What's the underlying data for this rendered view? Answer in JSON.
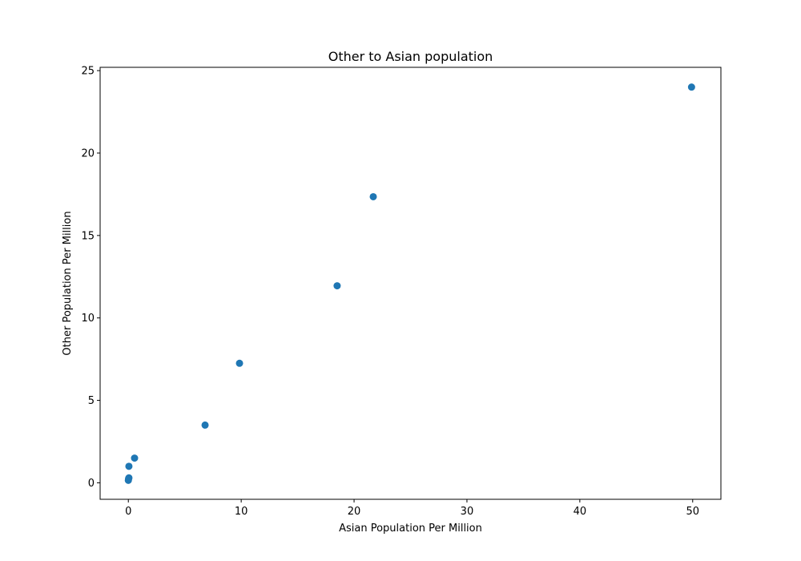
{
  "chart_data": {
    "type": "scatter",
    "title": "Other to Asian population",
    "xlabel": "Asian Population Per Million",
    "ylabel": "Other Population Per Million",
    "xlim": [
      -2.5,
      52.5
    ],
    "ylim": [
      -1.0,
      25.2
    ],
    "xticks": [
      0,
      10,
      20,
      30,
      40,
      50
    ],
    "yticks": [
      0,
      5,
      10,
      15,
      20,
      25
    ],
    "grid": false,
    "color": "#1f77b4",
    "series": [
      {
        "points": [
          {
            "x": 0.0,
            "y": 0.15
          },
          {
            "x": 0.02,
            "y": 0.25
          },
          {
            "x": 0.05,
            "y": 0.3
          },
          {
            "x": 0.05,
            "y": 1.0
          },
          {
            "x": 0.55,
            "y": 1.5
          },
          {
            "x": 6.8,
            "y": 3.5
          },
          {
            "x": 9.85,
            "y": 7.25
          },
          {
            "x": 18.5,
            "y": 11.95
          },
          {
            "x": 21.7,
            "y": 17.35
          },
          {
            "x": 49.9,
            "y": 24.0
          }
        ]
      }
    ]
  }
}
